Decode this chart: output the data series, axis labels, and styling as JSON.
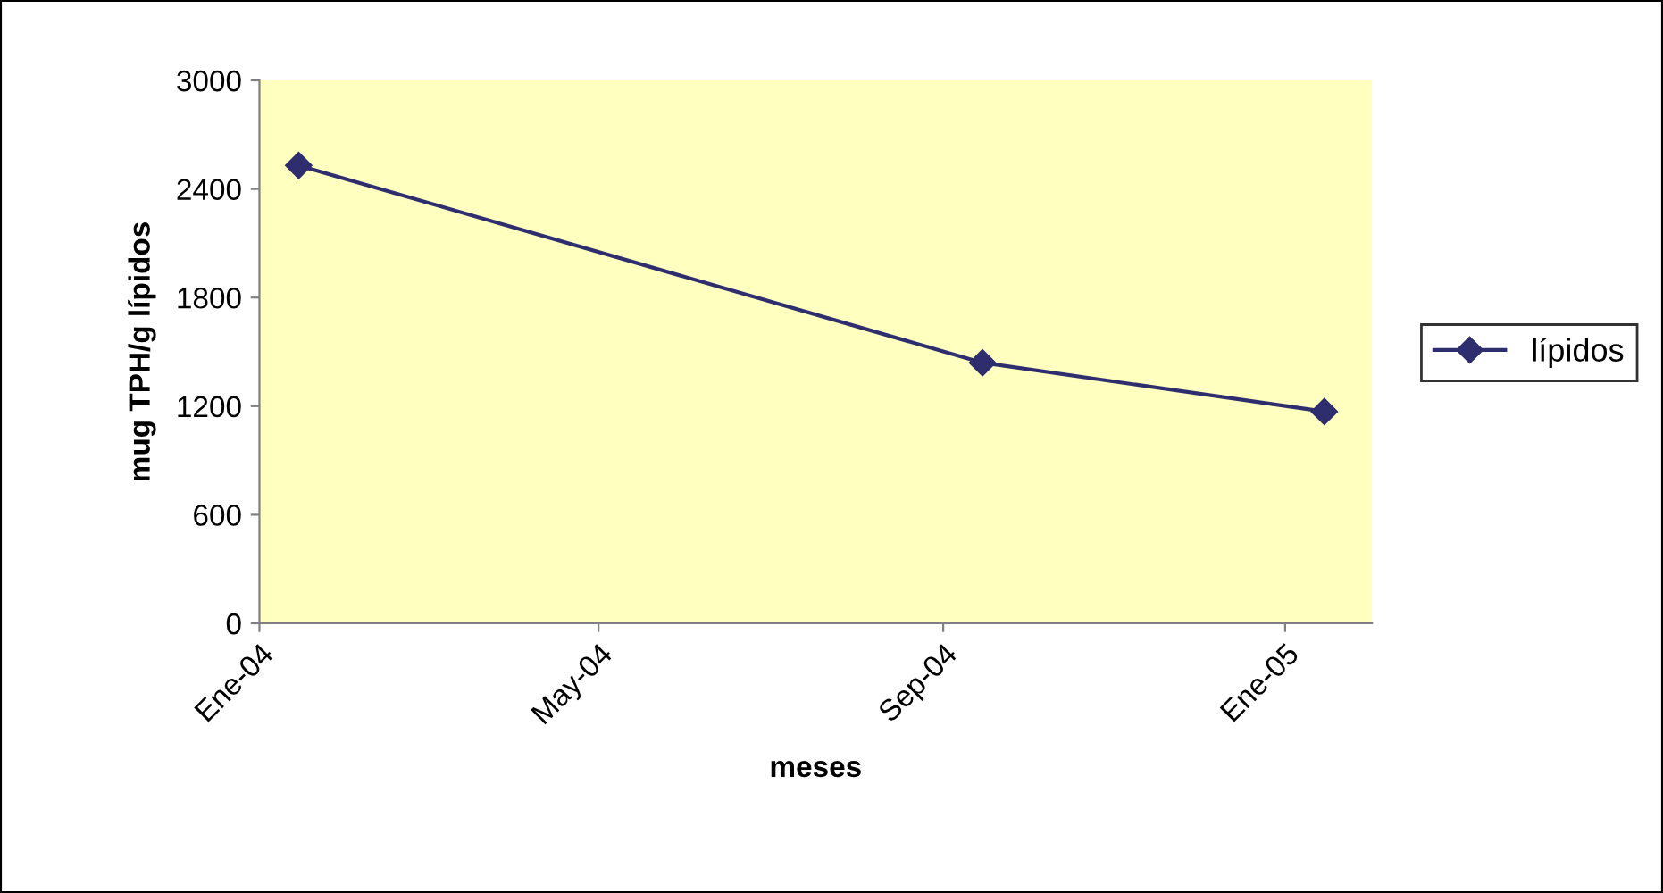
{
  "chart_data": {
    "type": "line",
    "xlabel": "meses",
    "ylabel": "mug TPH/g lípidos",
    "x": [
      "2004-01-15",
      "2004-09-15",
      "2005-01-15"
    ],
    "series": [
      {
        "name": "lípidos",
        "color": "#2e2e6e",
        "values": [
          2530,
          1440,
          1170
        ]
      }
    ],
    "xlim": [
      "2004-01-01",
      "2005-02-01"
    ],
    "xticks": [
      {
        "value": "2004-01-01",
        "label": "Ene-04"
      },
      {
        "value": "2004-05-01",
        "label": "May-04"
      },
      {
        "value": "2004-09-01",
        "label": "Sep-04"
      },
      {
        "value": "2005-01-01",
        "label": "Ene-05"
      }
    ],
    "ylim": [
      0,
      3000
    ],
    "yticks": [
      0,
      600,
      1200,
      1800,
      2400,
      3000
    ],
    "grid": false,
    "legend": "right",
    "marker": "diamond",
    "line_style": "solid"
  }
}
